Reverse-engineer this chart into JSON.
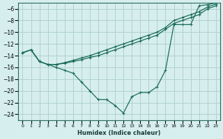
{
  "xlabel": "Humidex (Indice chaleur)",
  "ylabel": "",
  "bg_color": "#d6eeee",
  "grid_color": "#b0d0d0",
  "line_color": "#1a6a5a",
  "xlim": [
    -0.5,
    23.5
  ],
  "ylim": [
    -25,
    -5
  ],
  "xticks": [
    0,
    1,
    2,
    3,
    4,
    5,
    6,
    7,
    8,
    9,
    10,
    11,
    12,
    13,
    14,
    15,
    16,
    17,
    18,
    19,
    20,
    21,
    22,
    23
  ],
  "yticks": [
    -6,
    -8,
    -10,
    -12,
    -14,
    -16,
    -18,
    -20,
    -22,
    -24
  ],
  "line1": {
    "x": [
      0,
      1,
      2,
      3,
      4,
      5,
      6,
      7,
      8,
      9,
      10,
      11,
      12,
      13,
      14,
      15,
      16,
      17,
      18,
      19,
      20,
      21,
      22,
      23
    ],
    "y": [
      -13.5,
      -13.0,
      -15.0,
      -15.5,
      -16.0,
      -16.5,
      -17.0,
      -18.5,
      -20.0,
      -21.5,
      -21.5,
      -22.5,
      -23.8,
      -21.0,
      -20.3,
      -20.3,
      -19.3,
      -16.5,
      -8.7,
      -8.7,
      -8.7,
      -5.5,
      -5.3,
      -5.0
    ]
  },
  "line2": {
    "x": [
      0,
      1,
      2,
      3,
      4,
      5,
      6,
      7,
      8,
      9,
      10,
      11,
      12,
      13,
      14,
      15,
      16,
      17,
      18,
      19,
      20,
      21,
      22,
      23
    ],
    "y": [
      -13.5,
      -13.0,
      -15.0,
      -15.5,
      -15.5,
      -15.3,
      -15.0,
      -14.7,
      -14.3,
      -14.0,
      -13.5,
      -13.0,
      -12.5,
      -12.0,
      -11.5,
      -11.0,
      -10.5,
      -9.5,
      -8.5,
      -8.0,
      -7.5,
      -7.0,
      -6.0,
      -5.5
    ]
  },
  "line3": {
    "x": [
      0,
      1,
      2,
      3,
      4,
      5,
      6,
      7,
      8,
      9,
      10,
      11,
      12,
      13,
      14,
      15,
      16,
      17,
      18,
      19,
      20,
      21,
      22,
      23
    ],
    "y": [
      -13.5,
      -13.0,
      -15.0,
      -15.5,
      -15.5,
      -15.2,
      -14.8,
      -14.4,
      -14.0,
      -13.5,
      -13.0,
      -12.5,
      -12.0,
      -11.5,
      -11.0,
      -10.5,
      -10.0,
      -9.2,
      -8.0,
      -7.5,
      -7.0,
      -6.5,
      -5.7,
      -5.2
    ]
  }
}
